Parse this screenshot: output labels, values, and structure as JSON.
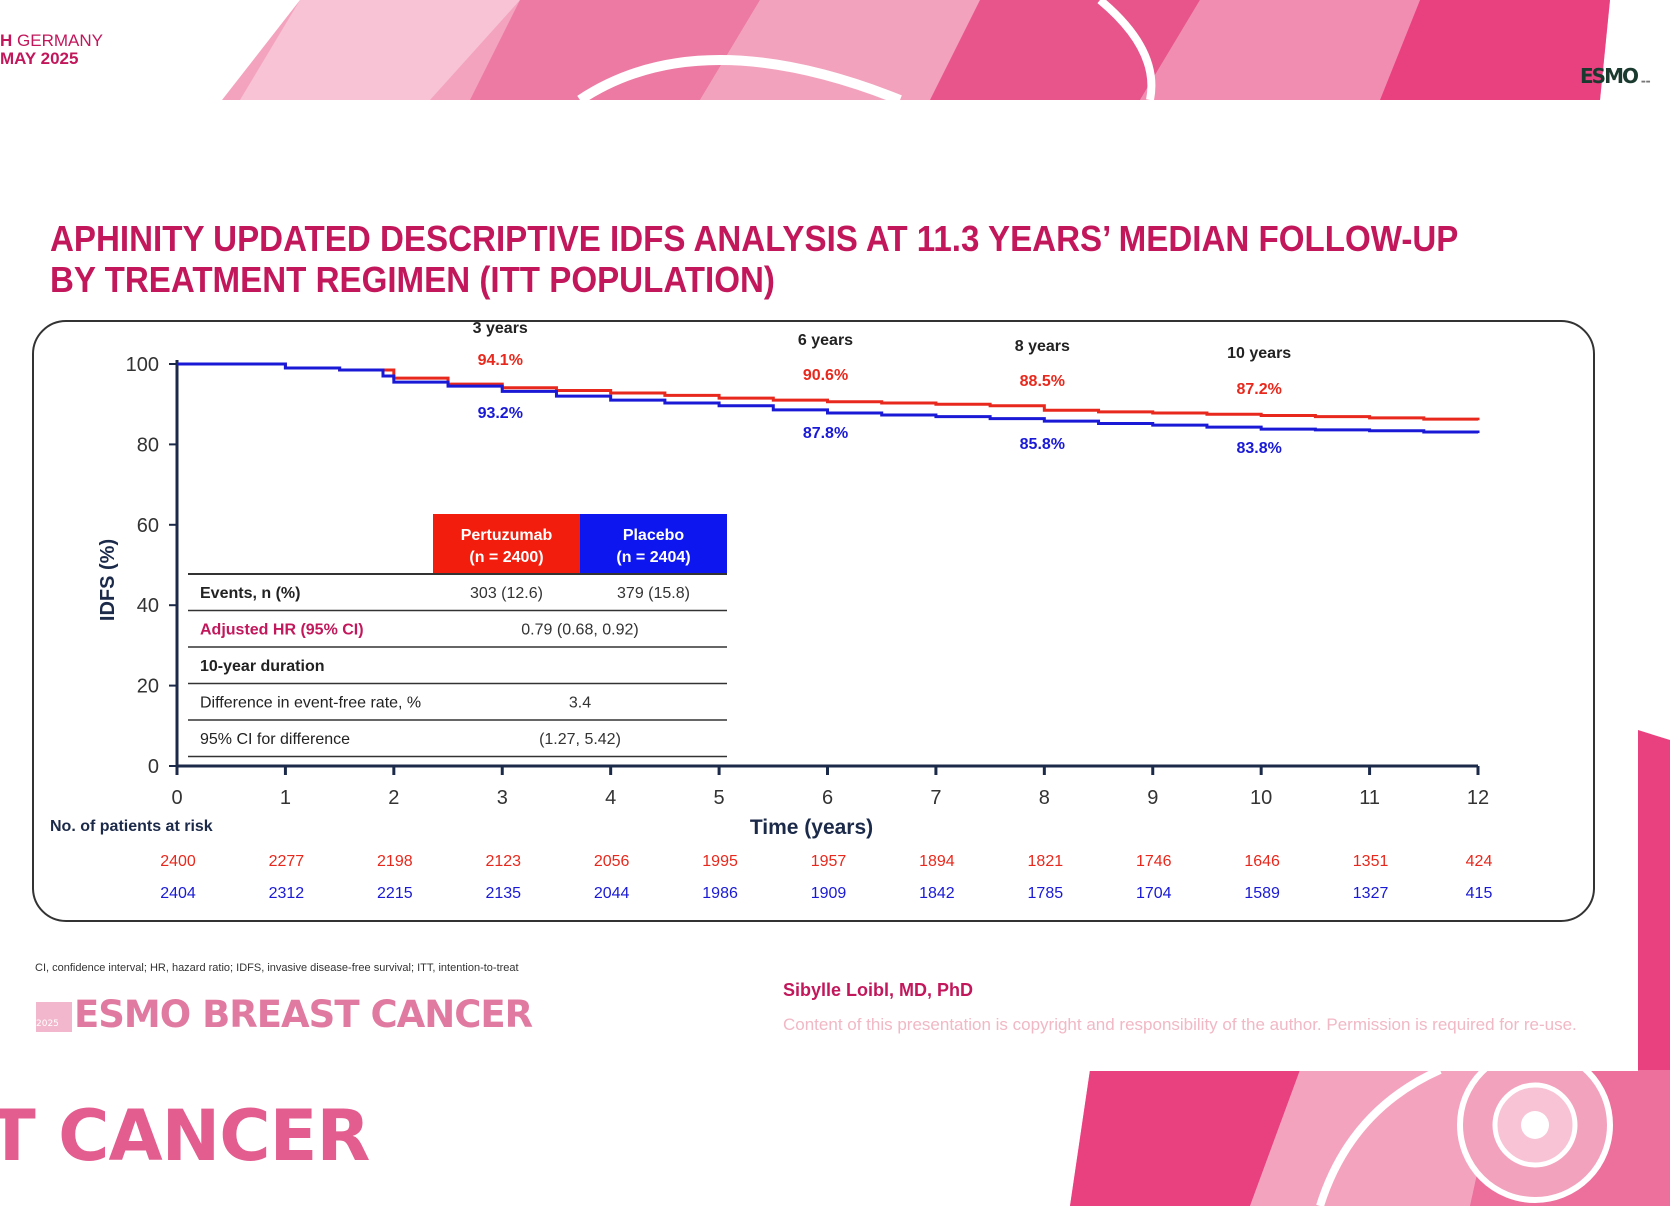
{
  "header": {
    "location_line": "H GERMANY",
    "date_line": "MAY 2025",
    "esmo_logo": "ESMO",
    "brand_colors": {
      "primary": "#c2185b",
      "pertuzumab": "#e8281c",
      "placebo": "#1a1ad6"
    }
  },
  "slide": {
    "title_line1": "APHINITY UPDATED DESCRIPTIVE IDFS ANALYSIS AT 11.3 YEARS’ MEDIAN FOLLOW-UP",
    "title_line2": "BY TREATMENT REGIMEN (ITT POPULATION)"
  },
  "chart_data": {
    "type": "line",
    "xlabel": "Time (years)",
    "ylabel": "IDFS (%)",
    "xlim": [
      0,
      12
    ],
    "ylim": [
      0,
      100
    ],
    "x_ticks": [
      "0",
      "1",
      "2",
      "3",
      "4",
      "5",
      "6",
      "7",
      "8",
      "9",
      "10",
      "11",
      "12"
    ],
    "y_ticks": [
      "0",
      "20",
      "40",
      "60",
      "80",
      "100"
    ],
    "series": [
      {
        "name": "Pertuzumab",
        "color": "#e8281c",
        "x": [
          0,
          1,
          1.5,
          2,
          2.5,
          3,
          3.5,
          4,
          4.5,
          5,
          5.5,
          6,
          6.5,
          7,
          7.5,
          8,
          8.5,
          9,
          9.5,
          10,
          10.5,
          11,
          11.5,
          12
        ],
        "y": [
          100,
          99,
          98.5,
          96.5,
          95,
          94.1,
          93.4,
          92.8,
          92.2,
          91.5,
          91,
          90.6,
          90.3,
          90,
          89.6,
          88.5,
          88.1,
          87.8,
          87.5,
          87.2,
          86.9,
          86.6,
          86.3,
          86
        ]
      },
      {
        "name": "Placebo",
        "color": "#1a1ad6",
        "x": [
          0,
          1,
          1.5,
          1.9,
          2,
          2.5,
          3,
          3.5,
          4,
          4.5,
          5,
          5.5,
          6,
          6.5,
          7,
          7.5,
          8,
          8.5,
          9,
          9.5,
          10,
          10.5,
          11,
          11.5,
          12
        ],
        "y": [
          100,
          99,
          98.5,
          97,
          95.5,
          94.5,
          93.2,
          92,
          91,
          90.3,
          89.6,
          88.6,
          87.8,
          87.3,
          86.9,
          86.4,
          85.8,
          85.2,
          84.8,
          84.3,
          83.8,
          83.6,
          83.4,
          83.1,
          82.8
        ]
      }
    ],
    "annotations": [
      {
        "label": "3 years",
        "pertuzumab": "94.1%",
        "placebo": "93.2%"
      },
      {
        "label": "6 years",
        "pertuzumab": "90.6%",
        "placebo": "87.8%"
      },
      {
        "label": "8 years",
        "pertuzumab": "88.5%",
        "placebo": "85.8%"
      },
      {
        "label": "10 years",
        "pertuzumab": "87.2%",
        "placebo": "83.8%"
      }
    ],
    "inset_table": {
      "col_pertuzumab_line1": "Pertuzumab",
      "col_pertuzumab_line2": "(n = 2400)",
      "col_placebo_line1": "Placebo",
      "col_placebo_line2": "(n = 2404)",
      "rows": [
        {
          "label": "Events, n (%)",
          "pertuzumab": "303 (12.6)",
          "placebo": "379 (15.8)"
        },
        {
          "label": "Adjusted HR (95% CI)",
          "combined": "0.79 (0.68, 0.92)"
        },
        {
          "label": "10-year duration"
        },
        {
          "label": "Difference in event-free rate, %",
          "combined": "3.4"
        },
        {
          "label": "95% CI for difference",
          "combined": "(1.27, 5.42)"
        }
      ]
    },
    "risk_table": {
      "title": "No. of patients at risk",
      "pertuzumab": [
        "2400",
        "2277",
        "2198",
        "2123",
        "2056",
        "1995",
        "1957",
        "1894",
        "1821",
        "1746",
        "1646",
        "1351",
        "424"
      ],
      "placebo": [
        "2404",
        "2312",
        "2215",
        "2135",
        "2044",
        "1986",
        "1909",
        "1842",
        "1785",
        "1704",
        "1589",
        "1327",
        "415"
      ]
    }
  },
  "footer": {
    "footnote": "CI, confidence interval; HR, hazard ratio; IDFS, invasive disease-free survival; ITT, intention-to-treat",
    "brand_year": "2025",
    "brand": "ESMO BREAST CANCER",
    "author": "Sibylle Loibl, MD, PhD",
    "copyright": "Content of this presentation is copyright and responsibility of the author. Permission is required for re-use.",
    "big_text": "T CANCER"
  }
}
